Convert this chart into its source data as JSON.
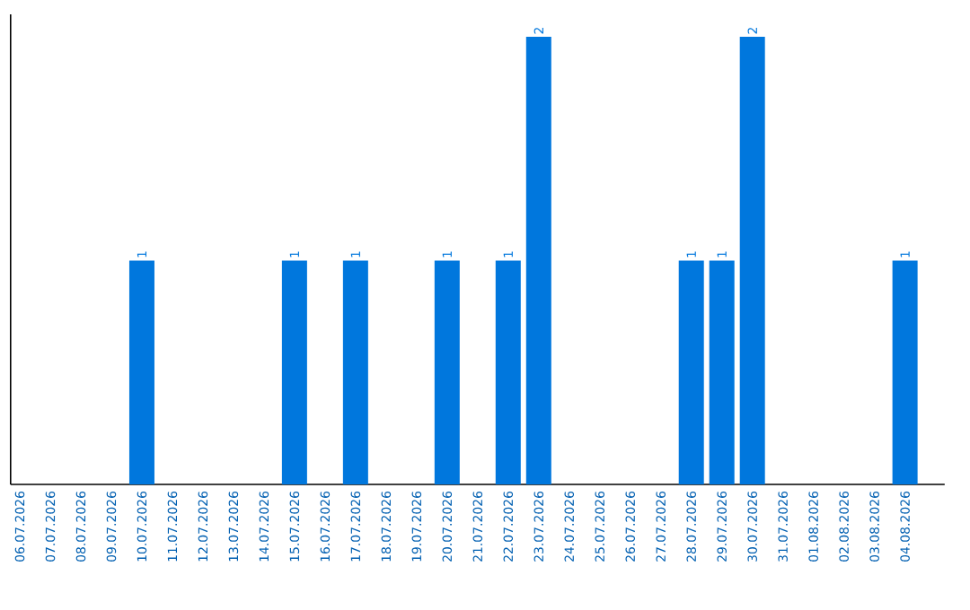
{
  "chart_data": {
    "type": "bar",
    "categories": [
      "06.07.2026",
      "07.07.2026",
      "08.07.2026",
      "09.07.2026",
      "10.07.2026",
      "11.07.2026",
      "12.07.2026",
      "13.07.2026",
      "14.07.2026",
      "15.07.2026",
      "16.07.2026",
      "17.07.2026",
      "18.07.2026",
      "19.07.2026",
      "20.07.2026",
      "21.07.2026",
      "22.07.2026",
      "23.07.2026",
      "24.07.2026",
      "25.07.2026",
      "26.07.2026",
      "27.07.2026",
      "28.07.2026",
      "29.07.2026",
      "30.07.2026",
      "31.07.2026",
      "01.08.2026",
      "02.08.2026",
      "03.08.2026",
      "04.08.2026"
    ],
    "values": [
      0,
      0,
      0,
      0,
      1,
      0,
      0,
      0,
      0,
      1,
      0,
      1,
      0,
      0,
      1,
      0,
      1,
      2,
      0,
      0,
      0,
      0,
      1,
      1,
      2,
      0,
      0,
      0,
      0,
      1
    ],
    "value_labels": [
      null,
      null,
      null,
      null,
      "1",
      null,
      null,
      null,
      null,
      "1",
      null,
      "1",
      null,
      null,
      "1",
      null,
      "1",
      "2",
      null,
      null,
      null,
      null,
      "1",
      "1",
      "2",
      null,
      null,
      null,
      null,
      "1"
    ],
    "color": "#0077dd",
    "tick_labels": "x",
    "grid": false
  }
}
